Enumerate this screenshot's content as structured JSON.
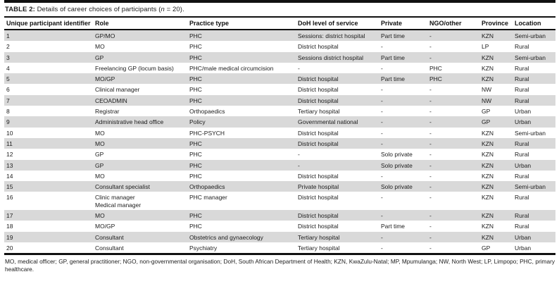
{
  "caption": {
    "label": "TABLE 2:",
    "text": " Details of career choices of participants (",
    "n": "n",
    "rest": " = 20)."
  },
  "table": {
    "columns": [
      "Unique participant identifier",
      "Role",
      "Practice type",
      "DoH level of service",
      "Private",
      "NGO/other",
      "Province",
      "Location"
    ],
    "rows": [
      [
        "1",
        "GP/MO",
        "PHC",
        "Sessions: district hospital",
        "Part time",
        "-",
        "KZN",
        "Semi-urban"
      ],
      [
        "2",
        "MO",
        "PHC",
        "District hospital",
        "-",
        "-",
        "LP",
        "Rural"
      ],
      [
        "3",
        "GP",
        "PHC",
        "Sessions district hospital",
        "Part time",
        "-",
        "KZN",
        "Semi-urban"
      ],
      [
        "4",
        "Freelancing GP (locum basis)",
        "PHC/male medical circumcision",
        "-",
        "-",
        "PHC",
        "KZN",
        "Rural"
      ],
      [
        "5",
        "MO/GP",
        "PHC",
        "District hospital",
        "Part time",
        "PHC",
        "KZN",
        "Rural"
      ],
      [
        "6",
        "Clinical manager",
        "PHC",
        "District hospital",
        "-",
        "-",
        "NW",
        "Rural"
      ],
      [
        "7",
        "CEOADMIN",
        "PHC",
        "District hospital",
        "-",
        "-",
        "NW",
        "Rural"
      ],
      [
        "8",
        "Registrar",
        "Orthopaedics",
        "Tertiary hospital",
        "-",
        "-",
        "GP",
        "Urban"
      ],
      [
        "9",
        "Administrative head office",
        "Policy",
        "Governmental national",
        "-",
        "-",
        "GP",
        "Urban"
      ],
      [
        "10",
        "MO",
        "PHC-PSYCH",
        "District hospital",
        "-",
        "-",
        "KZN",
        "Semi-urban"
      ],
      [
        "11",
        "MO",
        "PHC",
        "District hospital",
        "-",
        "-",
        "KZN",
        "Rural"
      ],
      [
        "12",
        "GP",
        "PHC",
        "-",
        "Solo private",
        "-",
        "KZN",
        "Rural"
      ],
      [
        "13",
        "GP",
        "PHC",
        "-",
        "Solo private",
        "-",
        "KZN",
        "Urban"
      ],
      [
        "14",
        "MO",
        "PHC",
        "District hospital",
        "-",
        "-",
        "KZN",
        "Rural"
      ],
      [
        "15",
        "Consultant specialist",
        "Orthopaedics",
        "Private hospital",
        "Solo private",
        "-",
        "KZN",
        "Semi-urban"
      ],
      [
        "16",
        "Clinic manager\nMedical manager",
        "PHC manager",
        "District hospital",
        "-",
        "-",
        "KZN",
        "Rural"
      ],
      [
        "17",
        "MO",
        "PHC",
        "District hospital",
        "-",
        "-",
        "KZN",
        "Rural"
      ],
      [
        "18",
        "MO/GP",
        "PHC",
        "District hospital",
        "Part time",
        "-",
        "KZN",
        "Rural"
      ],
      [
        "19",
        "Consultant",
        "Obstetrics and gynaecology",
        "Tertiary hospital",
        "-",
        "-",
        "KZN",
        "Urban"
      ],
      [
        "20",
        "Consultant",
        "Psychiatry",
        "Tertiary hospital",
        "-",
        "-",
        "GP",
        "Urban"
      ]
    ]
  },
  "footnote": "MO, medical officer; GP, general practitioner; NGO, non-governmental organisation; DoH, South African Department of Health; KZN, KwaZulu-Natal; MP, Mpumulanga; NW, North West; LP, Limpopo; PHC, primary healthcare.",
  "colors": {
    "stripe": "#d9d9d9",
    "border": "#111111",
    "text": "#1c1c1c"
  }
}
